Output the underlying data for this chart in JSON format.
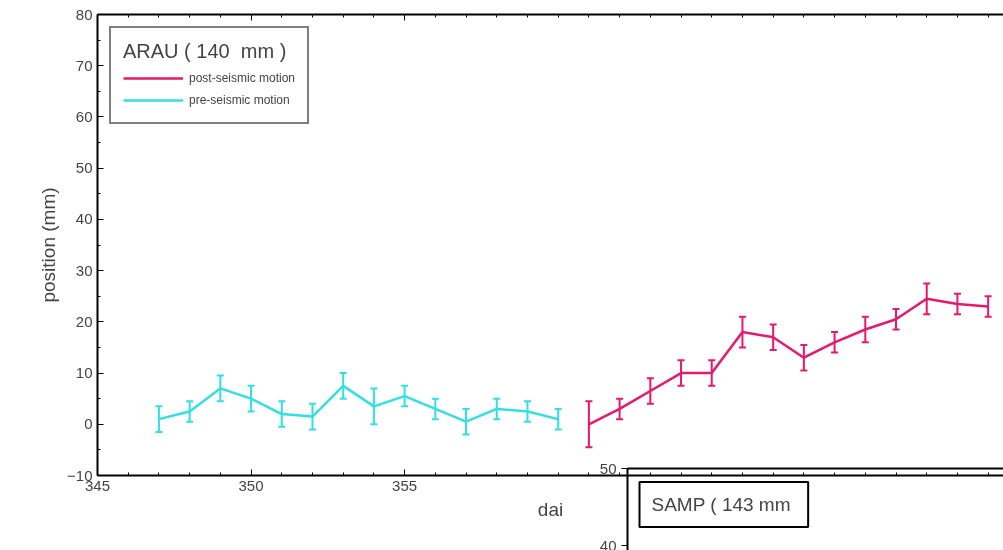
{
  "chart_data": [
    {
      "type": "line",
      "xlabel": "dai",
      "ylabel": "position (mm)",
      "legend_title": "ARAU ( 140  mm )",
      "legend": "top left",
      "grid": false,
      "marker": "none",
      "line_style": "solid",
      "xlim": [
        345,
        374.5
      ],
      "xticks": [
        345,
        350,
        355
      ],
      "ylim": [
        -10,
        80
      ],
      "yticks": [
        -10,
        0,
        10,
        20,
        30,
        40,
        50,
        60,
        70,
        80
      ],
      "series": [
        {
          "name": "post-seismic motion",
          "color": "#e6196e",
          "x": [
            361,
            362,
            363,
            364,
            365,
            366,
            367,
            368,
            369,
            370,
            371,
            372,
            373,
            374
          ],
          "values": [
            0,
            3,
            6.5,
            10,
            10,
            18,
            17,
            13,
            16,
            18.5,
            20.5,
            24.5,
            23.5,
            23
          ],
          "errors": [
            4.5,
            2,
            2.5,
            2.5,
            2.5,
            3,
            2.5,
            2.5,
            2,
            2.5,
            2,
            3,
            2,
            2
          ]
        },
        {
          "name": "pre-seismic motion",
          "color": "#33e0e0",
          "x": [
            347,
            348,
            349,
            350,
            351,
            352,
            353,
            354,
            355,
            356,
            357,
            358,
            359,
            360
          ],
          "values": [
            1,
            2.5,
            7,
            5,
            2,
            1.5,
            7.5,
            3.5,
            5.5,
            3,
            0.5,
            3,
            2.5,
            1
          ],
          "errors": [
            2.5,
            2,
            2.5,
            2.5,
            2.5,
            2.5,
            2.5,
            3.5,
            2,
            2,
            2.5,
            2,
            2,
            2
          ]
        }
      ]
    },
    {
      "type": "other",
      "title": "SAMP ( 143  mm",
      "annotations": [
        "50",
        "40"
      ]
    }
  ]
}
